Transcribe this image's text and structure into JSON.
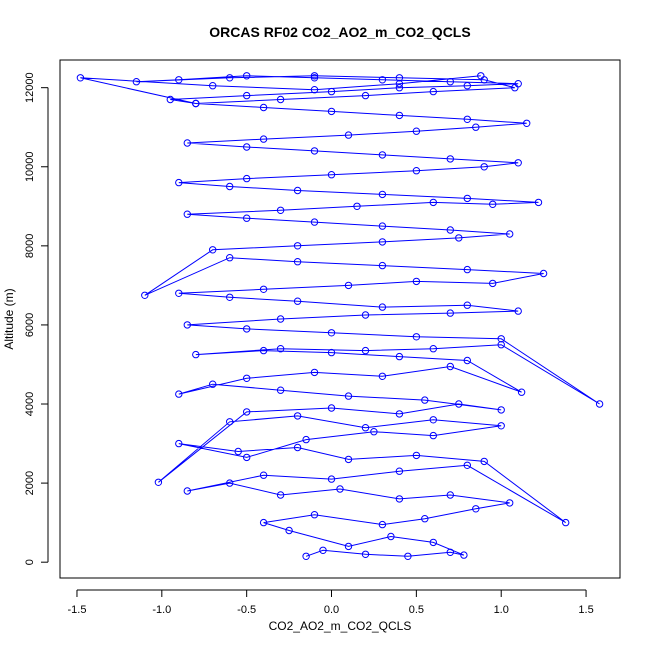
{
  "chart_data": {
    "type": "scatter",
    "title": "ORCAS RF02 CO2_AO2_m_CO2_QCLS",
    "xlabel": "CO2_AO2_m_CO2_QCLS",
    "ylabel": "Altitude (m)",
    "xlim": [
      -1.6,
      1.7
    ],
    "ylim": [
      -400,
      12700
    ],
    "xticks": [
      -1.5,
      -1.0,
      -0.5,
      0.0,
      0.5,
      1.0,
      1.5
    ],
    "xtick_labels": [
      "-1.5",
      "-1.0",
      "-0.5",
      "0.0",
      "0.5",
      "1.0",
      "1.5"
    ],
    "yticks": [
      0,
      2000,
      4000,
      6000,
      8000,
      10000,
      12000
    ],
    "ytick_labels": [
      "0",
      "2000",
      "4000",
      "6000",
      "8000",
      "10000",
      "12000"
    ],
    "grid": false,
    "legend": "none",
    "series_color": "#0000ff",
    "markers": "open-circle",
    "connected": true,
    "x": [
      -0.15,
      -0.05,
      0.2,
      0.45,
      0.7,
      0.78,
      0.6,
      0.35,
      0.1,
      -0.25,
      -0.4,
      -0.1,
      0.3,
      0.55,
      0.85,
      1.05,
      0.7,
      0.4,
      0.05,
      -0.3,
      -0.6,
      -0.85,
      -0.4,
      0.0,
      0.4,
      0.8,
      1.38,
      0.9,
      0.5,
      0.1,
      -0.2,
      -0.55,
      -0.9,
      -0.5,
      -0.15,
      0.25,
      0.6,
      1.0,
      0.6,
      0.2,
      -0.2,
      -0.6,
      -1.02,
      -0.5,
      0.0,
      0.4,
      0.75,
      1.0,
      0.55,
      0.1,
      -0.3,
      -0.7,
      -0.9,
      -0.5,
      -0.1,
      0.3,
      0.7,
      1.12,
      0.8,
      0.4,
      0.0,
      -0.4,
      -0.8,
      -0.3,
      0.2,
      0.6,
      1.0,
      1.58,
      1.0,
      0.5,
      0.0,
      -0.5,
      -0.85,
      -0.3,
      0.2,
      0.7,
      1.1,
      0.8,
      0.3,
      -0.2,
      -0.6,
      -0.9,
      -0.4,
      0.1,
      0.5,
      0.95,
      1.25,
      0.8,
      0.3,
      -0.2,
      -0.6,
      -1.1,
      -0.7,
      -0.2,
      0.3,
      0.75,
      1.05,
      0.7,
      0.3,
      -0.1,
      -0.5,
      -0.85,
      -0.3,
      0.15,
      0.6,
      0.95,
      1.22,
      0.8,
      0.3,
      -0.2,
      -0.6,
      -0.9,
      -0.5,
      0.0,
      0.5,
      0.9,
      1.1,
      0.7,
      0.3,
      -0.1,
      -0.5,
      -0.85,
      -0.4,
      0.1,
      0.5,
      0.85,
      1.15,
      0.8,
      0.4,
      0.0,
      -0.4,
      -0.8,
      -0.95,
      -0.5,
      0.0,
      0.4,
      0.8,
      1.1,
      0.7,
      0.3,
      -0.1,
      -0.5,
      -0.9,
      -1.15,
      -0.6,
      -0.1,
      0.4,
      0.9,
      1.08,
      0.6,
      0.2,
      -0.3,
      -0.8,
      -1.48,
      -0.7,
      -0.1,
      0.4,
      0.88
    ],
    "y": [
      150,
      300,
      200,
      150,
      250,
      180,
      500,
      650,
      400,
      800,
      1000,
      1200,
      950,
      1100,
      1350,
      1500,
      1700,
      1600,
      1850,
      1700,
      2000,
      1800,
      2200,
      2100,
      2300,
      2450,
      1000,
      2550,
      2700,
      2600,
      2900,
      2800,
      3000,
      2650,
      3100,
      3300,
      3200,
      3450,
      3600,
      3400,
      3700,
      3550,
      2020,
      3800,
      3900,
      3750,
      4000,
      3850,
      4100,
      4200,
      4350,
      4500,
      4250,
      4650,
      4800,
      4700,
      4950,
      4300,
      5100,
      5200,
      5300,
      5350,
      5250,
      5400,
      5350,
      5400,
      5500,
      4000,
      5650,
      5700,
      5800,
      5900,
      6000,
      6150,
      6250,
      6300,
      6350,
      6500,
      6450,
      6600,
      6700,
      6800,
      6900,
      7000,
      7100,
      7050,
      7300,
      7400,
      7500,
      7600,
      7700,
      6750,
      7900,
      8000,
      8100,
      8200,
      8300,
      8400,
      8500,
      8600,
      8700,
      8800,
      8900,
      9000,
      9100,
      9050,
      9100,
      9200,
      9300,
      9400,
      9500,
      9600,
      9700,
      9800,
      9900,
      10000,
      10100,
      10200,
      10300,
      10400,
      10500,
      10600,
      10700,
      10800,
      10900,
      11000,
      11100,
      11200,
      11300,
      11400,
      11500,
      11600,
      11700,
      11800,
      11900,
      12000,
      12050,
      12100,
      12150,
      12200,
      12250,
      12300,
      12200,
      12150,
      12250,
      12300,
      12250,
      12200,
      12000,
      11900,
      11800,
      11700,
      11600,
      12250,
      12050,
      11950,
      12100,
      12300
    ]
  }
}
